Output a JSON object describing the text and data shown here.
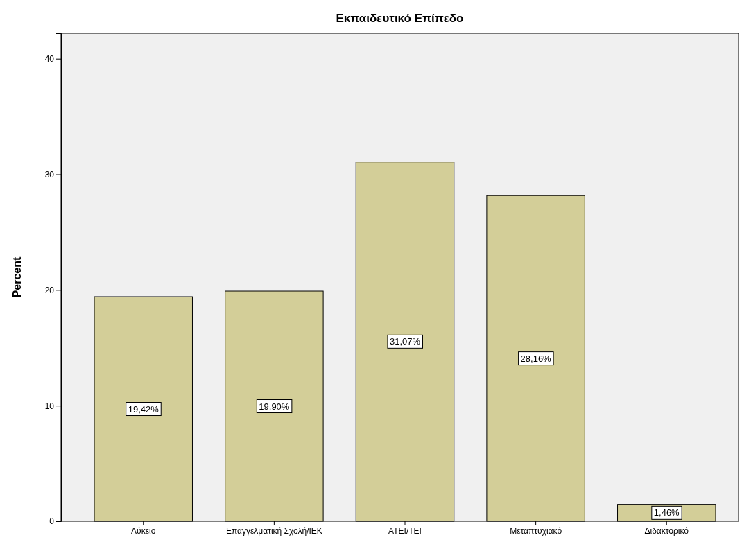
{
  "chart_data": {
    "type": "bar",
    "title": "Εκπαιδευτικό Επίπεδο",
    "ylabel": "Percent",
    "categories": [
      "Λύκειο",
      "Επαγγελματική Σχολή/ΙΕΚ",
      "ΑΤΕΙ/ΤΕΙ",
      "Μεταπτυχιακό",
      "Διδακτορικό"
    ],
    "values": [
      19.42,
      19.9,
      31.07,
      28.16,
      1.46
    ],
    "value_labels": [
      "19,42%",
      "19,90%",
      "31,07%",
      "28,16%",
      "1,46%"
    ],
    "color": "#d3ce98",
    "ylim": [
      0,
      42.2
    ],
    "yticks": [
      0,
      10,
      20,
      30,
      40
    ],
    "grid": false
  }
}
